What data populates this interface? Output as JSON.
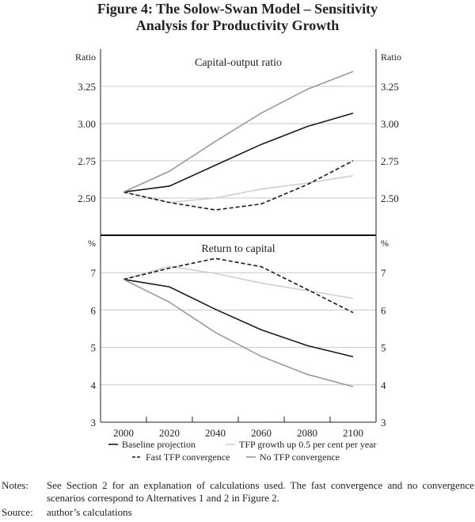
{
  "title_line1": "Figure 4: The Solow-Swan Model – Sensitivity",
  "title_line2": "Analysis for Productivity Growth",
  "chart_data": [
    {
      "type": "line",
      "title": "Capital-output ratio",
      "ylabel_left": "Ratio",
      "ylabel_right": "Ratio",
      "x": [
        2000,
        2020,
        2040,
        2060,
        2080,
        2100
      ],
      "xlim": [
        1990,
        2110
      ],
      "ylim": [
        2.25,
        3.5
      ],
      "yticks": [
        "2.50",
        "2.75",
        "3.00",
        "3.25"
      ],
      "ytick_values": [
        2.5,
        2.75,
        3.0,
        3.25
      ],
      "grid": true,
      "series": [
        {
          "name": "Baseline projection",
          "color": "#1a1a1a",
          "dash": false,
          "values": [
            2.54,
            2.58,
            2.72,
            2.86,
            2.98,
            3.07
          ]
        },
        {
          "name": "TFP growth up 0.5 per cent per year",
          "color": "#cfcfcf",
          "dash": false,
          "values": [
            2.54,
            2.47,
            2.5,
            2.56,
            2.6,
            2.65
          ]
        },
        {
          "name": "Fast TFP convergence",
          "color": "#1a1a1a",
          "dash": true,
          "values": [
            2.54,
            2.47,
            2.42,
            2.46,
            2.59,
            2.75
          ]
        },
        {
          "name": "No TFP convergence",
          "color": "#9a9a9a",
          "dash": false,
          "values": [
            2.54,
            2.68,
            2.88,
            3.07,
            3.23,
            3.35
          ]
        }
      ]
    },
    {
      "type": "line",
      "title": "Return to capital",
      "ylabel_left": "%",
      "ylabel_right": "%",
      "x": [
        2000,
        2020,
        2040,
        2060,
        2080,
        2100
      ],
      "xlim": [
        1990,
        2110
      ],
      "ylim": [
        3,
        8
      ],
      "yticks": [
        "3",
        "4",
        "5",
        "6",
        "7"
      ],
      "ytick_values": [
        3,
        4,
        5,
        6,
        7
      ],
      "xticks": [
        "2000",
        "2020",
        "2040",
        "2060",
        "2080",
        "2100"
      ],
      "xtick_values": [
        2000,
        2020,
        2040,
        2060,
        2080,
        2100
      ],
      "grid": true,
      "series": [
        {
          "name": "Baseline projection",
          "color": "#1a1a1a",
          "dash": false,
          "values": [
            6.82,
            6.62,
            6.02,
            5.47,
            5.05,
            4.75
          ]
        },
        {
          "name": "TFP growth up 0.5 per cent per year",
          "color": "#cfcfcf",
          "dash": false,
          "values": [
            6.82,
            7.17,
            6.98,
            6.72,
            6.52,
            6.31
          ]
        },
        {
          "name": "Fast TFP convergence",
          "color": "#1a1a1a",
          "dash": true,
          "values": [
            6.82,
            7.12,
            7.38,
            7.16,
            6.55,
            5.93
          ]
        },
        {
          "name": "No TFP convergence",
          "color": "#9a9a9a",
          "dash": false,
          "values": [
            6.82,
            6.21,
            5.4,
            4.76,
            4.28,
            3.95
          ]
        }
      ]
    }
  ],
  "legend": {
    "placement": "bottom",
    "items": [
      "Baseline projection",
      "TFP growth up 0.5 per cent per year",
      "Fast TFP convergence",
      "No TFP convergence"
    ]
  },
  "notes": {
    "notes_label": "Notes:",
    "notes_text": "See Section 2 for an explanation of calculations used. The fast convergence and no convergence scenarios correspond to Alternatives 1 and 2 in Figure 2.",
    "source_label": "Source:",
    "source_text": "author’s calculations"
  }
}
